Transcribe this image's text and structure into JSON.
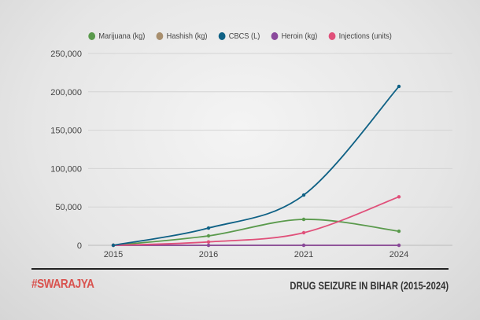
{
  "chart_data": {
    "type": "line",
    "title": "DRUG SEIZURE IN BIHAR (2015-2024)",
    "categories": [
      "2015",
      "2016",
      "2021",
      "2024"
    ],
    "ylim": [
      0,
      250000
    ],
    "yticks": [
      0,
      50000,
      100000,
      150000,
      200000,
      250000
    ],
    "ytick_labels": [
      "0",
      "50,000",
      "100,000",
      "150,000",
      "200,000",
      "250,000"
    ],
    "grid": true,
    "legend_position": "top",
    "series": [
      {
        "name": "Marijuana (kg)",
        "color": "#5a9a4c",
        "values": [
          0,
          12300,
          33800,
          18400
        ]
      },
      {
        "name": "Hashish (kg)",
        "color": "#a88f6e",
        "values": [
          0,
          0,
          0,
          0
        ]
      },
      {
        "name": "CBCS (L)",
        "color": "#0f6185",
        "values": [
          0,
          22500,
          65500,
          207000
        ]
      },
      {
        "name": "Heroin (kg)",
        "color": "#8a4a9c",
        "values": [
          0,
          0,
          0,
          0
        ]
      },
      {
        "name": "Injections (units)",
        "color": "#e0507a",
        "values": [
          0,
          4400,
          16400,
          63200
        ]
      }
    ]
  },
  "brand": "#SWARAJYA"
}
